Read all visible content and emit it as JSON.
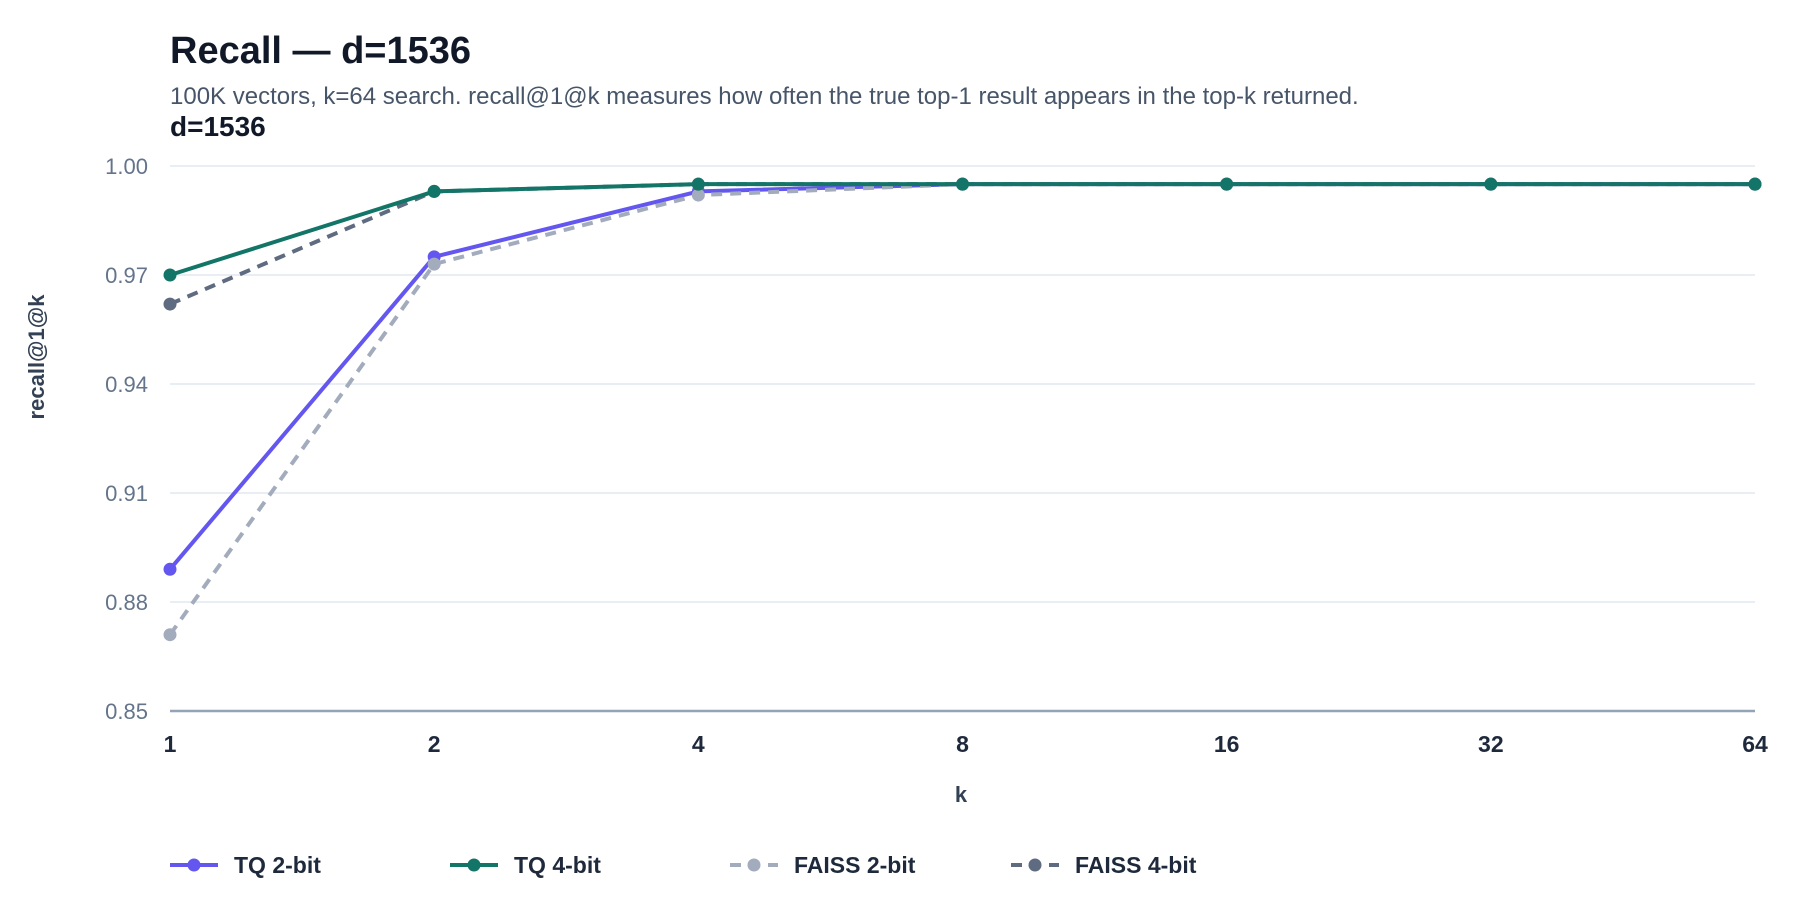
{
  "chart_data": {
    "type": "line",
    "title": "Recall — d=1536",
    "subtitle": "100K vectors, k=64 search. recall@1@k measures how often the true top-1 result appears in the top-k returned.",
    "panel_label": "d=1536",
    "xlabel": "k",
    "ylabel": "recall@1@k",
    "x": [
      1,
      2,
      4,
      8,
      16,
      32,
      64
    ],
    "x_labels": [
      "1",
      "2",
      "4",
      "8",
      "16",
      "32",
      "64"
    ],
    "x_scale": "log2",
    "ylim": [
      0.85,
      1.0
    ],
    "y_ticks": [
      0.85,
      0.88,
      0.91,
      0.94,
      0.97,
      1.0
    ],
    "y_tick_labels": [
      "0.85",
      "0.88",
      "0.91",
      "0.94",
      "0.97",
      "1.00"
    ],
    "grid": true,
    "legend_position": "bottom",
    "series": [
      {
        "name": "TQ 2-bit",
        "color": "#6357f0",
        "dashed": false,
        "values": [
          0.889,
          0.975,
          0.993,
          0.995,
          0.995,
          0.995,
          0.995
        ]
      },
      {
        "name": "FAISS 2-bit",
        "color": "#a3acbd",
        "dashed": true,
        "values": [
          0.871,
          0.973,
          0.992,
          0.995,
          0.995,
          0.995,
          0.995
        ]
      },
      {
        "name": "FAISS 4-bit",
        "color": "#5f6b80",
        "dashed": true,
        "values": [
          0.962,
          0.993,
          0.995,
          0.995,
          0.995,
          0.995,
          0.995
        ]
      },
      {
        "name": "TQ 4-bit",
        "color": "#127567",
        "dashed": false,
        "values": [
          0.97,
          0.993,
          0.995,
          0.995,
          0.995,
          0.995,
          0.995
        ]
      }
    ],
    "legend_order": [
      "TQ 2-bit",
      "TQ 4-bit",
      "FAISS 2-bit",
      "FAISS 4-bit"
    ]
  }
}
